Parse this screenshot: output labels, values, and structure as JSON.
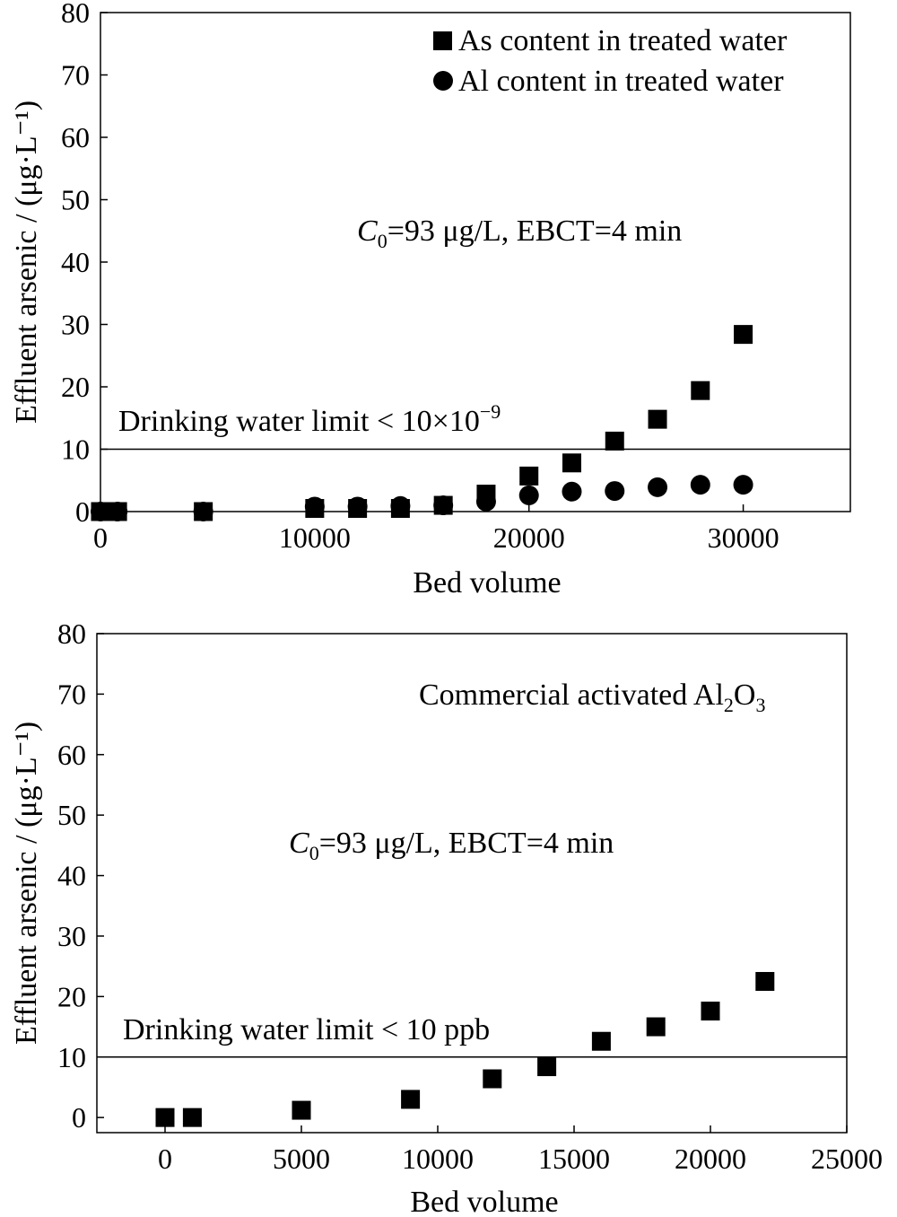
{
  "chart_data": [
    {
      "type": "scatter",
      "xlabel": "Bed volume",
      "ylabel": "Effluent arsenic / (μg·L⁻¹)",
      "xlim": [
        0,
        35000
      ],
      "ylim": [
        0,
        80
      ],
      "xticks": [
        0,
        10000,
        20000,
        30000
      ],
      "yticks": [
        0,
        10,
        20,
        30,
        40,
        50,
        60,
        70,
        80
      ],
      "grid": false,
      "legend_position": "top-right",
      "annotation_main": "=93 μg/L, EBCT=4 min",
      "annotation_var": "C",
      "annotation_sub": "0",
      "limit_label": "Drinking water limit < 10×10",
      "limit_sup": "−9",
      "limit_value": 10,
      "series": [
        {
          "name": "As content in treated water",
          "marker": "square",
          "points": [
            [
              0,
              0
            ],
            [
              800,
              0
            ],
            [
              4800,
              0
            ],
            [
              10000,
              0.5
            ],
            [
              12000,
              0.5
            ],
            [
              14000,
              0.5
            ],
            [
              16000,
              1.0
            ],
            [
              18000,
              2.8
            ],
            [
              20000,
              5.7
            ],
            [
              22000,
              7.8
            ],
            [
              24000,
              11.3
            ],
            [
              26000,
              14.8
            ],
            [
              28000,
              19.4
            ],
            [
              30000,
              28.4
            ]
          ]
        },
        {
          "name": "Al content in treated water",
          "marker": "circle",
          "points": [
            [
              0,
              0
            ],
            [
              800,
              0
            ],
            [
              4800,
              0
            ],
            [
              10000,
              0.8
            ],
            [
              12000,
              0.8
            ],
            [
              14000,
              0.9
            ],
            [
              16000,
              1.0
            ],
            [
              18000,
              1.6
            ],
            [
              20000,
              2.6
            ],
            [
              22000,
              3.2
            ],
            [
              24000,
              3.3
            ],
            [
              26000,
              3.9
            ],
            [
              28000,
              4.3
            ],
            [
              30000,
              4.3
            ]
          ]
        }
      ]
    },
    {
      "type": "scatter",
      "xlabel": "Bed volume",
      "ylabel": "Effluent arsenic / (μg·L⁻¹)",
      "xlim": [
        -2500,
        25000
      ],
      "ylim": [
        -2.5,
        80
      ],
      "xticks": [
        0,
        5000,
        10000,
        15000,
        20000,
        25000
      ],
      "yticks": [
        0,
        10,
        20,
        30,
        40,
        50,
        60,
        70,
        80
      ],
      "grid": false,
      "title_prefix": "Commercial activated Al",
      "title_sub1": "2",
      "title_mid": "O",
      "title_sub2": "3",
      "annotation_main": "=93 μg/L, EBCT=4 min",
      "annotation_var": "C",
      "annotation_sub": "0",
      "limit_label": "Drinking water limit < 10 ppb",
      "limit_value": 10,
      "series": [
        {
          "marker": "square",
          "points": [
            [
              0,
              0
            ],
            [
              1000,
              0
            ],
            [
              5000,
              1.2
            ],
            [
              9000,
              3.0
            ],
            [
              12000,
              6.4
            ],
            [
              14000,
              8.4
            ],
            [
              16000,
              12.6
            ],
            [
              18000,
              15.0
            ],
            [
              20000,
              17.6
            ],
            [
              22000,
              22.5
            ]
          ]
        }
      ]
    }
  ]
}
